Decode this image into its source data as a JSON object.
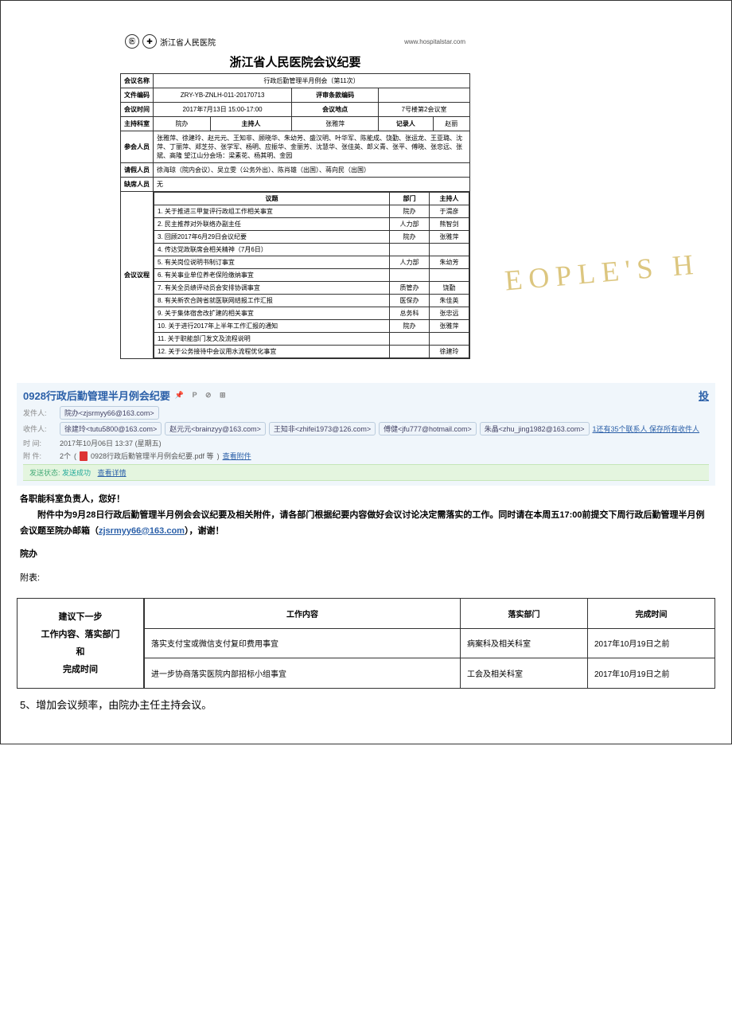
{
  "doc": {
    "hospital_short": "浙江省人民医院",
    "url": "www.hospitalstar.com",
    "title": "浙江省人民医院会议纪要",
    "labels": {
      "meeting_name": "会议名称",
      "file_code": "文件编码",
      "review_code": "评审条款编码",
      "meeting_time": "会议时间",
      "meeting_place": "会议地点",
      "host_dept": "主持科室",
      "host_person": "主持人",
      "recorder": "记录人",
      "attendees": "参会人员",
      "leave": "请假人员",
      "absent": "缺席人员",
      "agenda": "会议议程",
      "topic": "议题",
      "dept": "部门",
      "chair": "主持人"
    },
    "meeting_name": "行政后勤管理半月例会（第11次）",
    "file_code": "ZRY-YB-ZNLH-011-20170713",
    "review_code": "",
    "meeting_time": "2017年7月13日 15:00-17:00",
    "meeting_place": "7号楼第2会议室",
    "host_dept": "院办",
    "host_person": "张雅萍",
    "recorder": "赵丽",
    "attendees": "张雅萍、徐建玲、赵元元、王知非、顾晓华、朱幼芳、盛汉明、叶华军、陈能成、饶勤、张运龙、王亚璐、沈萍、丁丽萍、郑芝芬、张学军、杨明、应振华、金丽芳、沈慧华、张佳英、郎义青、张平、傅晓、张忠远、张斌、高隆 望江山分会场：梁素花、杨其明、金园",
    "leave": "徐海琼（院内会议）、吴立雯（公务外出）、陈肖雄（出国）、蒋向民（出国）",
    "absent": "无",
    "agenda_rows": [
      {
        "topic": "1. 关于推进三甲复评行政组工作相关事宜",
        "dept": "院办",
        "chair": "于渭彦"
      },
      {
        "topic": "2. 民主推荐对外联络办副主任",
        "dept": "人力部",
        "chair": "熊智剑"
      },
      {
        "topic": "3. 回顾2017年6月29日会议纪要",
        "dept": "院办",
        "chair": "张雅萍"
      },
      {
        "topic": "4. 传达党政联席会相关精神（7月6日）",
        "dept": "",
        "chair": ""
      },
      {
        "topic": "5. 有关岗位说明书制订事宜",
        "dept": "人力部",
        "chair": "朱幼芳"
      },
      {
        "topic": "6. 有关事业单位养老保险缴纳事宜",
        "dept": "",
        "chair": ""
      },
      {
        "topic": "7. 有关全员绩评动员会安排协调事宜",
        "dept": "质管办",
        "chair": "饶勤"
      },
      {
        "topic": "8. 有关新农合跨省就医联网结报工作汇报",
        "dept": "医保办",
        "chair": "朱佳英"
      },
      {
        "topic": "9. 关于集体宿舍改扩建的相关事宜",
        "dept": "总务科",
        "chair": "张忠远"
      },
      {
        "topic": "10. 关于进行2017年上半年工作汇报的通知",
        "dept": "院办",
        "chair": "张雅萍"
      },
      {
        "topic": "11. 关于职能部门发文及流程说明",
        "dept": "",
        "chair": ""
      },
      {
        "topic": "12. 关于公务接待中会议用水流程优化事宜",
        "dept": "",
        "chair": "徐建玲"
      }
    ]
  },
  "email": {
    "subject": "0928行政后勤管理半月例会纪要",
    "lbl_from": "发件人:",
    "lbl_to": "收件人:",
    "lbl_time": "时 间:",
    "lbl_att": "附 件:",
    "from": "院办<zjsrmyy66@163.com>",
    "to": [
      "徐建玲<tutu5800@163.com>",
      "赵元元<brainzyy@163.com>",
      "王知非<zhifei1973@126.com>",
      "傅健<jfu777@hotmail.com>",
      "朱晶<zhu_jing1982@163.com>"
    ],
    "to_more": "1还有35个联系人 保存所有收件人",
    "time": "2017年10月06日 13:37 (星期五)",
    "att_count": "2个",
    "att_name": "0928行政后勤管理半月例会纪要.pdf 等",
    "att_view": "查看附件",
    "status_lbl": "发送状态:",
    "status_val": "发送成功",
    "status_detail": "查看详情",
    "right_link": "投"
  },
  "body": {
    "greeting": "各职能科室负责人，您好！",
    "para1_a": "附件中为9月28日行政后勤管理半月例会会议纪要及相关附件，请各部门根据纪要内容做好会议讨论决定需落实的工作。同时请在本周五17:00前提交下周行政后勤管理半月例会议题至院办邮箱（",
    "para1_link": "zjsrmyy66@163.com",
    "para1_b": "），谢谢！",
    "sign": "院办",
    "att_lbl": "附表:"
  },
  "followup": {
    "left_l1": "建议下一步",
    "left_l2": "工作内容、落实部门",
    "left_l3": "和",
    "left_l4": "完成时间",
    "headers": [
      "工作内容",
      "落实部门",
      "完成时间"
    ],
    "rows": [
      {
        "c1": "落实支付宝或微信支付复印费用事宜",
        "c2": "病案科及相关科室",
        "c3": "2017年10月19日之前"
      },
      {
        "c1": "进一步协商落实医院内部招标小组事宜",
        "c2": "工会及相关科室",
        "c3": "2017年10月19日之前"
      }
    ]
  },
  "footer": "5、增加会议频率，由院办主任主持会议。",
  "watermark": "EOPLE'S H"
}
